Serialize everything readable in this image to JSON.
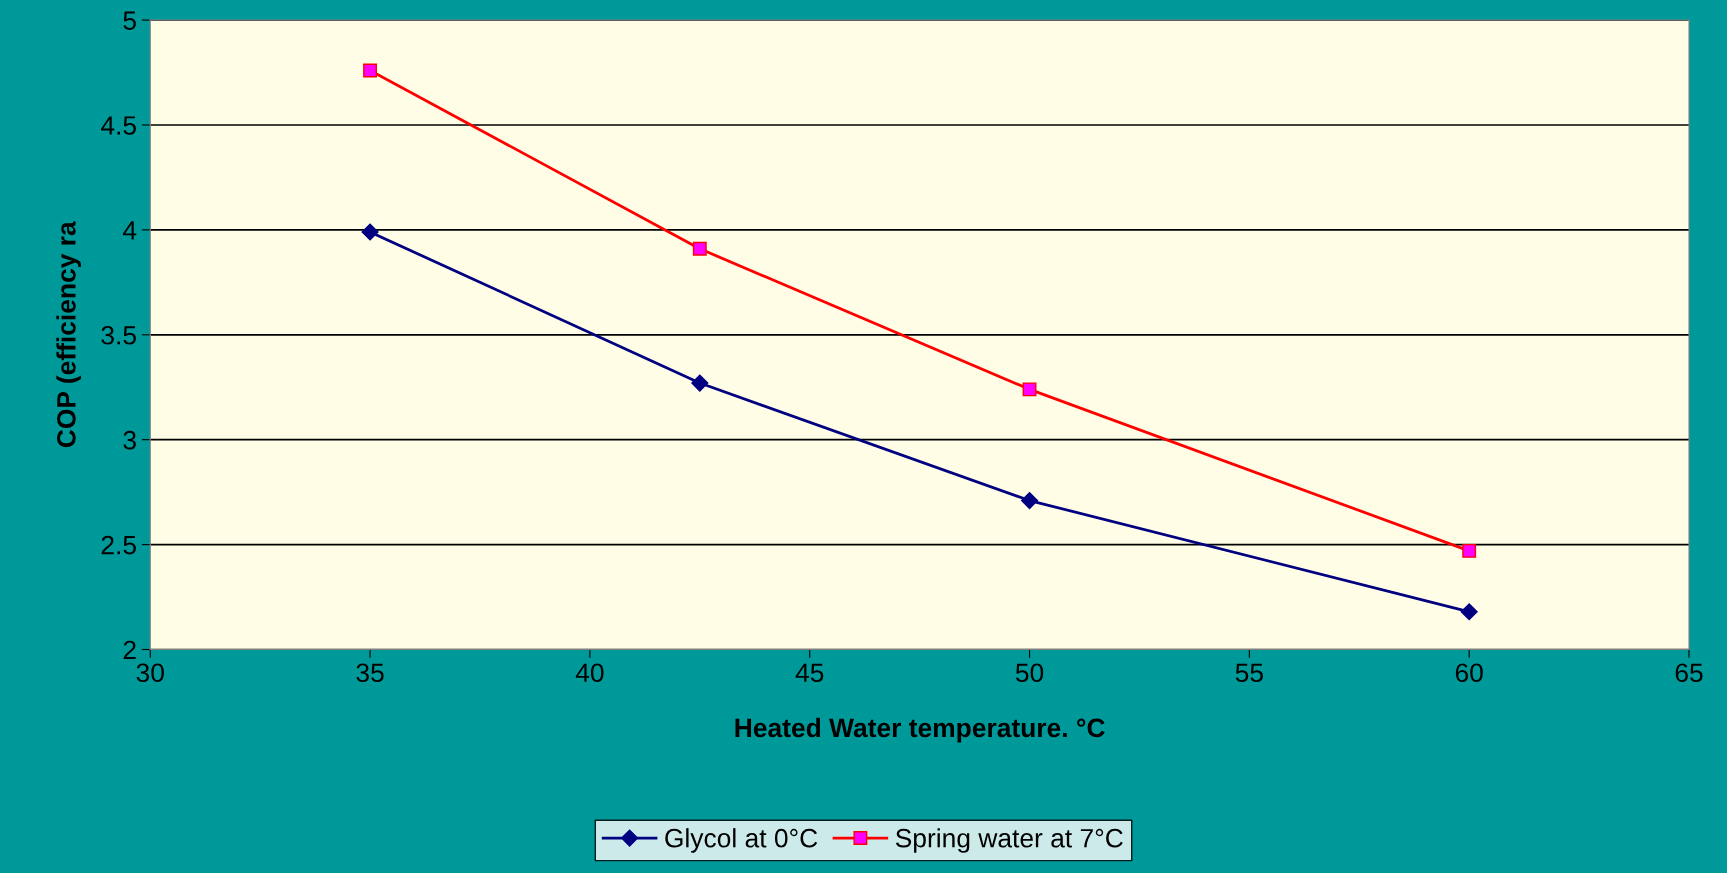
{
  "chart_data": {
    "type": "line",
    "xlabel": "Heated Water temperature. °C",
    "ylabel": "COP (efficiency ra",
    "x": [
      35,
      42.5,
      50,
      60
    ],
    "series": [
      {
        "name": "Glycol at 0°C",
        "color": "#000080",
        "marker": "diamond",
        "values": [
          3.99,
          3.27,
          2.71,
          2.18
        ]
      },
      {
        "name": "Spring water at 7°C",
        "color": "#ff0000",
        "marker": "square",
        "colors": [
          "#ff00ff",
          "#ff00ff",
          "#ff00ff",
          "#ff00ff"
        ],
        "values": [
          4.76,
          3.91,
          3.24,
          2.47
        ]
      }
    ],
    "xlim": [
      30,
      65
    ],
    "xticks": [
      30,
      35,
      40,
      45,
      50,
      55,
      60,
      65
    ],
    "ylim": [
      2,
      5
    ],
    "yticks": [
      2,
      2.5,
      3,
      3.5,
      4,
      4.5,
      5
    ],
    "grid": "y",
    "legend": "bottom",
    "line_style": "solid"
  }
}
